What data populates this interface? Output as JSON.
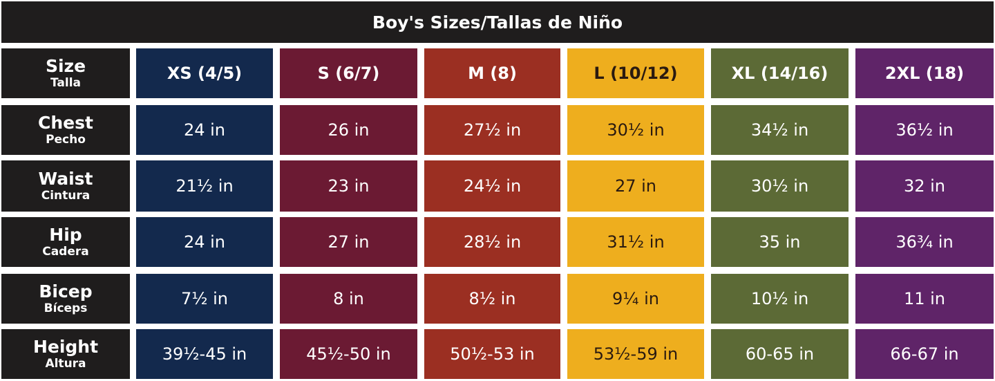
{
  "header": {
    "title": "Boy's Sizes/Tallas de Niño"
  },
  "table": {
    "corner": {
      "label": "Size",
      "sublabel": "Talla"
    },
    "columns": [
      "XS (4/5)",
      "S (6/7)",
      "M (8)",
      "L (10/12)",
      "XL (14/16)",
      "2XL (18)"
    ],
    "rows": [
      {
        "label": "Chest",
        "sublabel": "Pecho",
        "cells": [
          "24 in",
          "26 in",
          "27½ in",
          "30½ in",
          "34½ in",
          "36½ in"
        ]
      },
      {
        "label": "Waist",
        "sublabel": "Cintura",
        "cells": [
          "21½ in",
          "23 in",
          "24½ in",
          "27 in",
          "30½ in",
          "32 in"
        ]
      },
      {
        "label": "Hip",
        "sublabel": "Cadera",
        "cells": [
          "24 in",
          "27 in",
          "28½ in",
          "31½ in",
          "35 in",
          "36¾ in"
        ]
      },
      {
        "label": "Bicep",
        "sublabel": "Bíceps",
        "cells": [
          "7½ in",
          "8 in",
          "8½ in",
          "9¼ in",
          "10½ in",
          "11 in"
        ]
      },
      {
        "label": "Height",
        "sublabel": "Altura",
        "cells": [
          "39½-45 in",
          "45½-50 in",
          "50½-53 in",
          "53½-59 in",
          "60-65 in",
          "66-67 in"
        ]
      }
    ]
  }
}
